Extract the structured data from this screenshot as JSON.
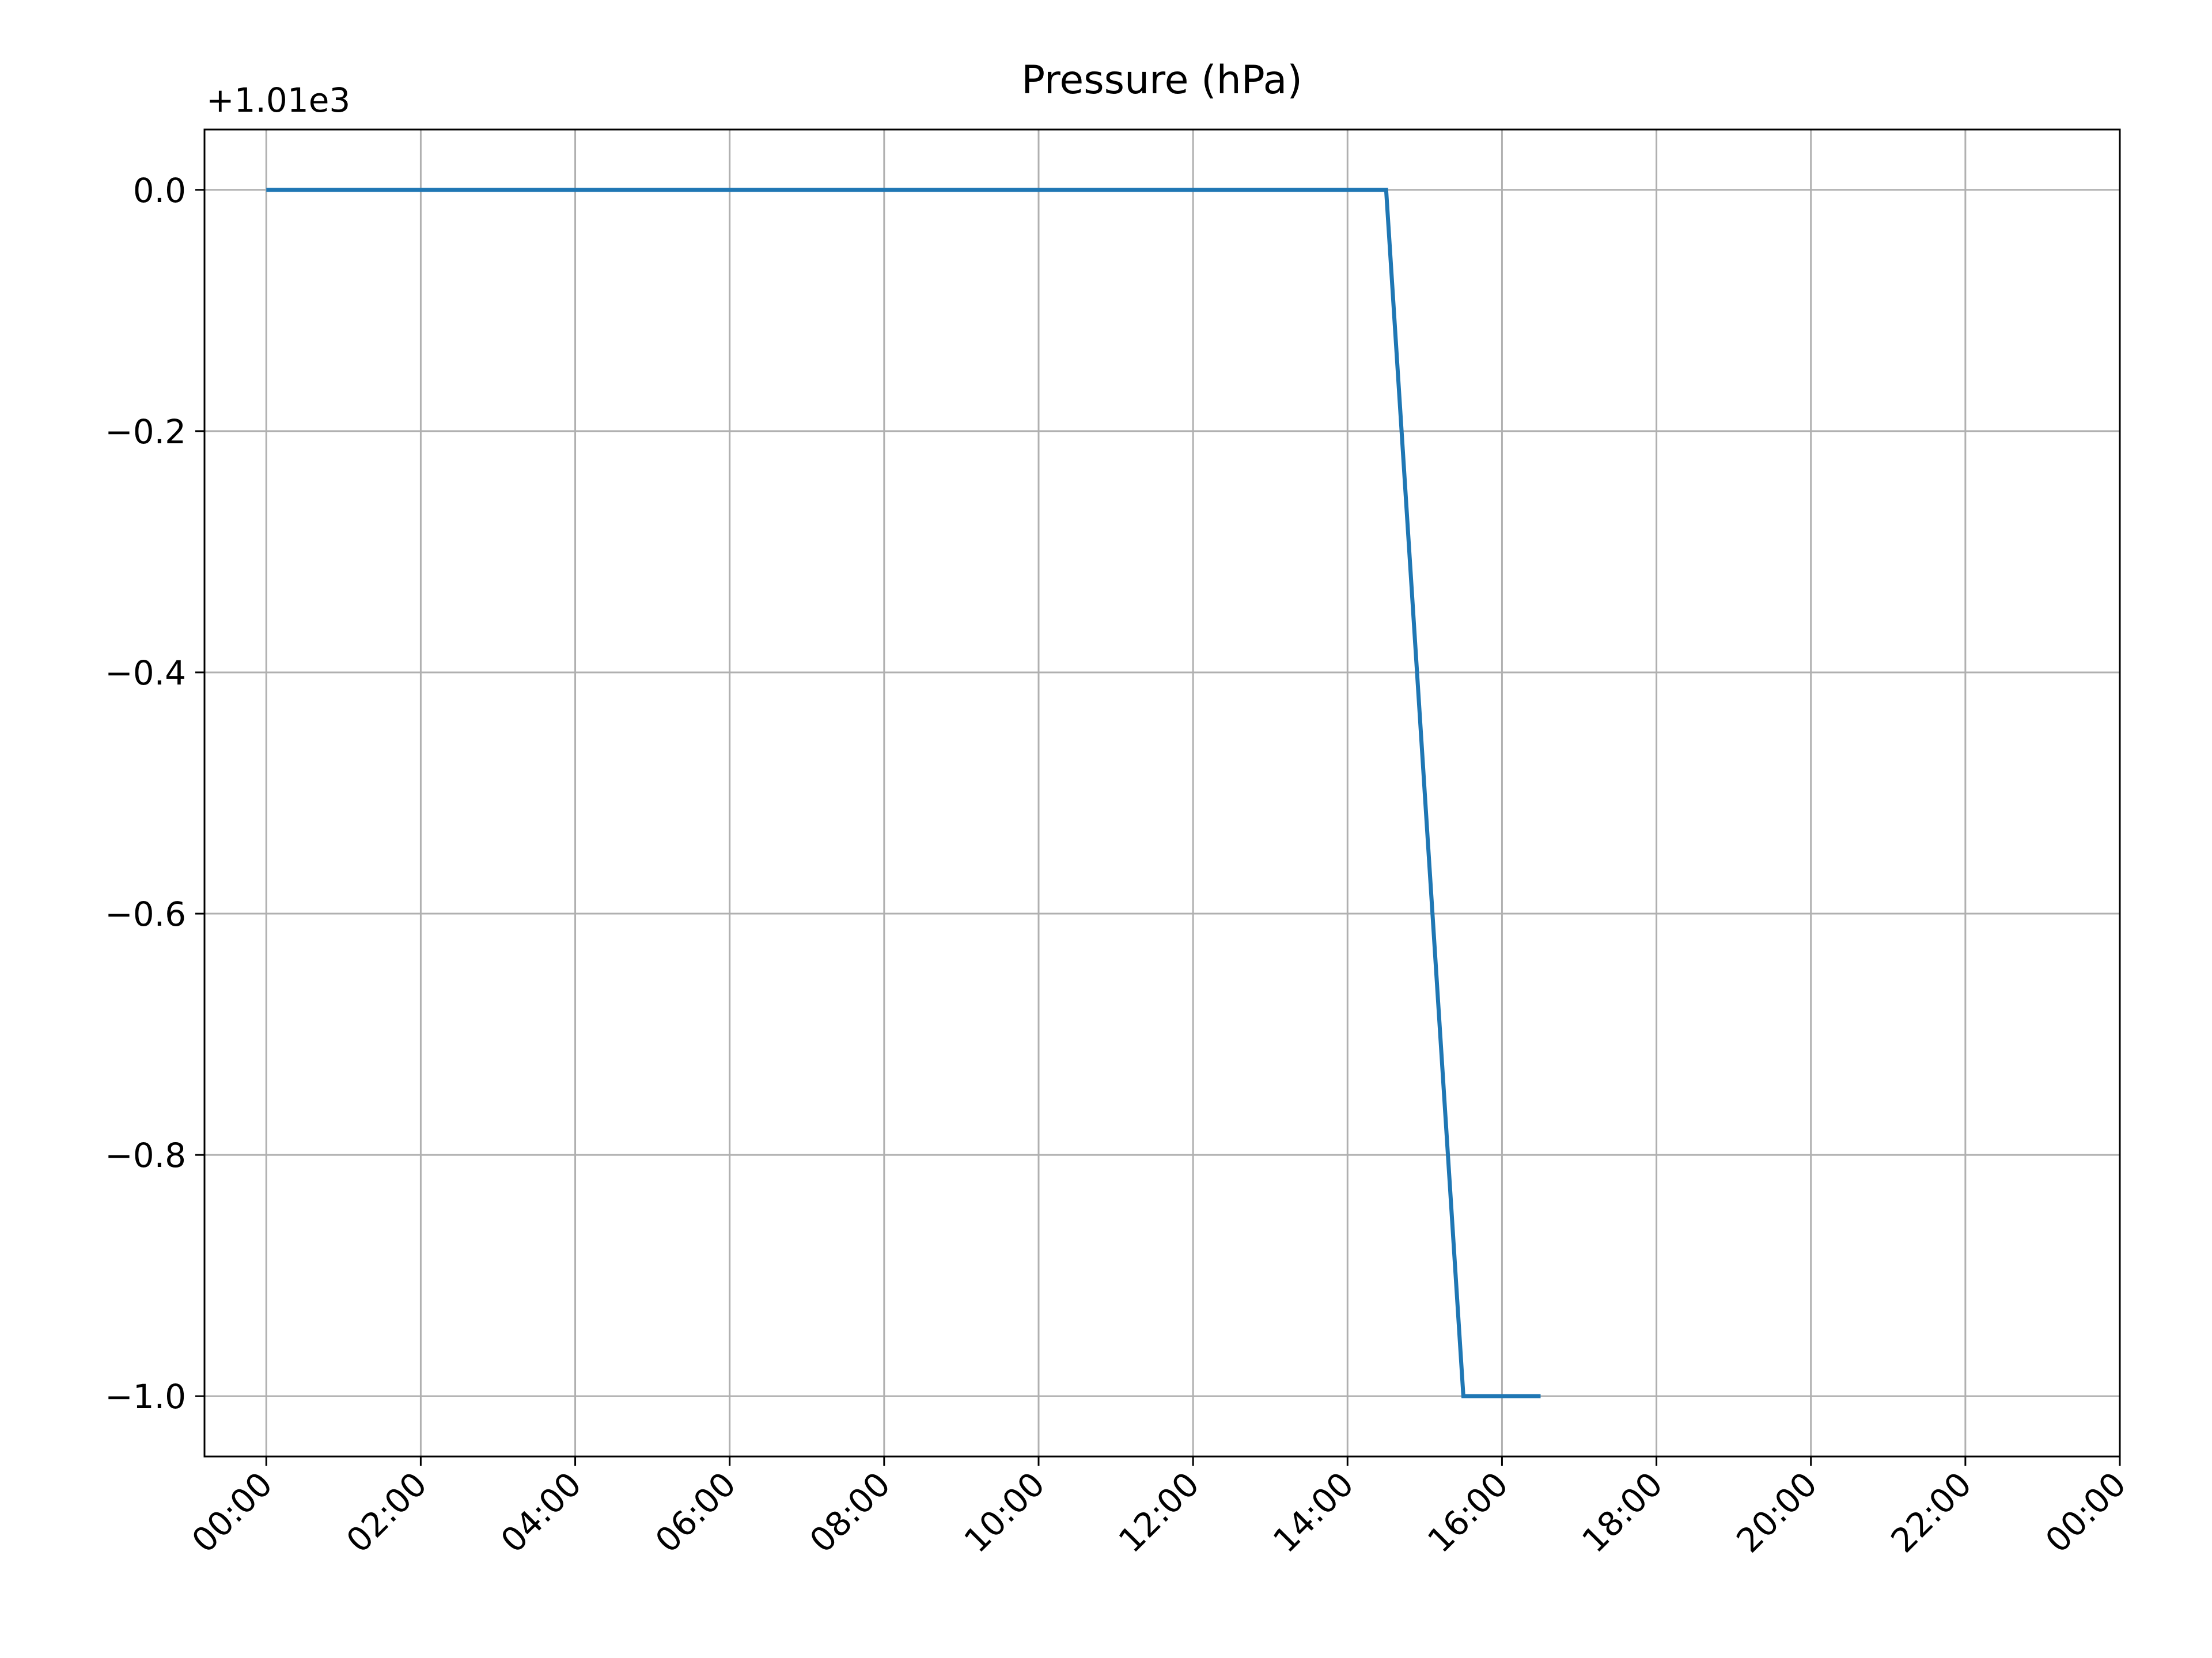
{
  "chart_data": {
    "type": "line",
    "title": "Pressure (hPa)",
    "offset_label": "+1.01e3",
    "xlabel": "",
    "ylabel": "",
    "x_tick_labels": [
      "00:00",
      "02:00",
      "04:00",
      "06:00",
      "08:00",
      "10:00",
      "12:00",
      "14:00",
      "16:00",
      "18:00",
      "20:00",
      "22:00",
      "00:00"
    ],
    "x_tick_hours": [
      0,
      2,
      4,
      6,
      8,
      10,
      12,
      14,
      16,
      18,
      20,
      22,
      24
    ],
    "xlim_hours": [
      -0.8,
      24
    ],
    "y_tick_labels": [
      "0.0",
      "−0.2",
      "−0.4",
      "−0.6",
      "−0.8",
      "−1.0"
    ],
    "y_ticks": [
      0.0,
      -0.2,
      -0.4,
      -0.6,
      -0.8,
      -1.0
    ],
    "ylim": [
      -1.05,
      0.05
    ],
    "grid": true,
    "series": [
      {
        "color": "#1f77b4",
        "x": [
          "00:00",
          "14:30",
          "15:30",
          "16:30"
        ],
        "x_hours": [
          0,
          14.5,
          15.5,
          16.5
        ],
        "y": [
          0.0,
          0.0,
          -1.0,
          -1.0
        ]
      }
    ]
  }
}
